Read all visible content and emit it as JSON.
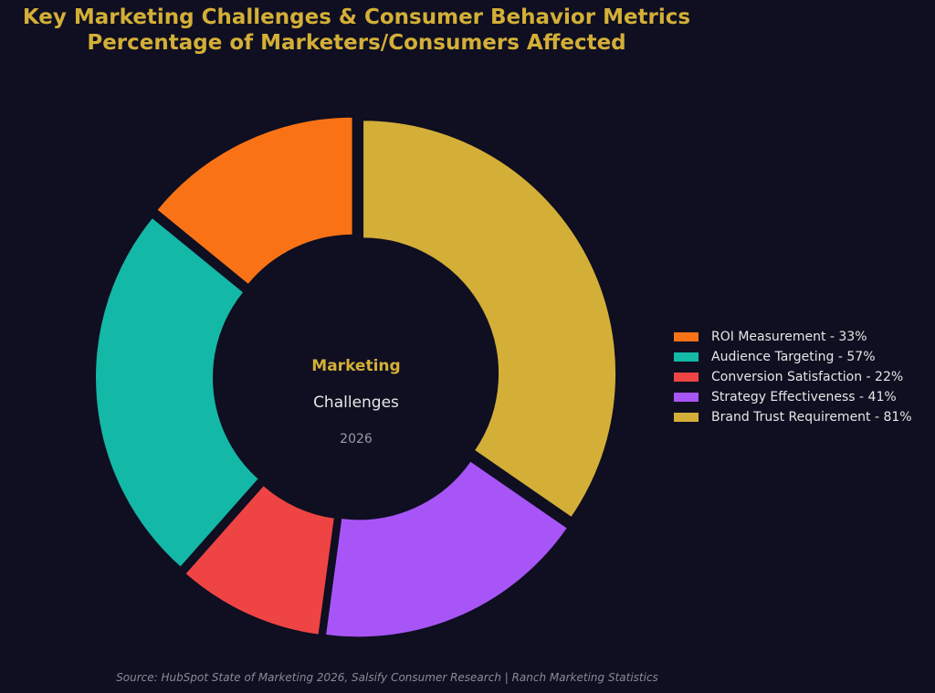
{
  "title_line1": "Key Marketing Challenges & Consumer Behavior Metrics",
  "title_line2": "Percentage of Marketers/Consumers Affected",
  "center": {
    "line1": "Marketing",
    "line2": "Challenges",
    "line3": "2026"
  },
  "source": "Source: HubSpot State of Marketing 2026, Salsify Consumer Research | Ranch Marketing Statistics",
  "chart_data": {
    "type": "pie",
    "donut": true,
    "legend_position": "right",
    "categories": [
      "ROI Measurement",
      "Audience Targeting",
      "Conversion Satisfaction",
      "Strategy Effectiveness",
      "Brand Trust Requirement"
    ],
    "values": [
      33,
      57,
      22,
      41,
      81
    ],
    "colors": [
      "#f97316",
      "#14b8a6",
      "#ef4444",
      "#a855f7",
      "#d4af37"
    ],
    "legend": [
      "ROI Measurement - 33%",
      "Audience Targeting - 57%",
      "Conversion Satisfaction - 22%",
      "Strategy Effectiveness - 41%",
      "Brand Trust Requirement - 81%"
    ]
  }
}
